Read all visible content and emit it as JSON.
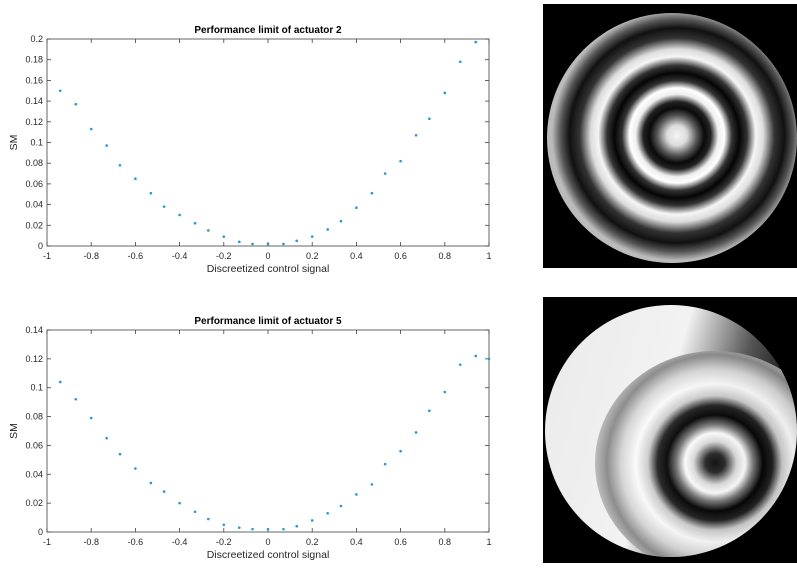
{
  "chart_data": [
    {
      "type": "scatter",
      "title": "Performance limit of actuator 2",
      "xlabel": "Discreetized control signal",
      "ylabel": "SM",
      "xlim": [
        -1,
        1
      ],
      "ylim": [
        0,
        0.2
      ],
      "xticks": [
        "-1",
        "-0.8",
        "-0.6",
        "-0.4",
        "-0.2",
        "0",
        "0.2",
        "0.4",
        "0.6",
        "0.8",
        "1"
      ],
      "yticks": [
        "0",
        "0.02",
        "0.04",
        "0.06",
        "0.08",
        "0.1",
        "0.12",
        "0.14",
        "0.16",
        "0.18",
        "0.2"
      ],
      "marker_color": "#1f9bd6",
      "series": [
        {
          "x": [
            -0.94,
            -0.87,
            -0.8,
            -0.73,
            -0.67,
            -0.6,
            -0.53,
            -0.47,
            -0.4,
            -0.33,
            -0.27,
            -0.2,
            -0.13,
            -0.07,
            0.0,
            0.07,
            0.13,
            0.2,
            0.27,
            0.33,
            0.4,
            0.47,
            0.53,
            0.6,
            0.67,
            0.73,
            0.8,
            0.87,
            0.94
          ],
          "y": [
            0.15,
            0.137,
            0.113,
            0.097,
            0.078,
            0.065,
            0.051,
            0.038,
            0.03,
            0.022,
            0.015,
            0.009,
            0.004,
            0.002,
            0.002,
            0.002,
            0.005,
            0.009,
            0.016,
            0.024,
            0.037,
            0.051,
            0.07,
            0.082,
            0.107,
            0.123,
            0.148,
            0.178,
            0.197
          ]
        }
      ]
    },
    {
      "type": "scatter",
      "title": "Performance limit of actuator 5",
      "xlabel": "Discreetized control signal",
      "ylabel": "SM",
      "xlim": [
        -1,
        1
      ],
      "ylim": [
        0,
        0.14
      ],
      "xticks": [
        "-1",
        "-0.8",
        "-0.6",
        "-0.4",
        "-0.2",
        "0",
        "0.2",
        "0.4",
        "0.6",
        "0.8",
        "1"
      ],
      "yticks": [
        "0",
        "0.02",
        "0.04",
        "0.06",
        "0.08",
        "0.1",
        "0.12",
        "0.14"
      ],
      "marker_color": "#1f9bd6",
      "series": [
        {
          "x": [
            -0.94,
            -0.87,
            -0.8,
            -0.73,
            -0.67,
            -0.6,
            -0.53,
            -0.47,
            -0.4,
            -0.33,
            -0.27,
            -0.2,
            -0.13,
            -0.07,
            0.0,
            0.07,
            0.13,
            0.2,
            0.27,
            0.33,
            0.4,
            0.47,
            0.53,
            0.6,
            0.67,
            0.73,
            0.8,
            0.87,
            0.94,
            1.0
          ],
          "y": [
            0.104,
            0.092,
            0.079,
            0.065,
            0.054,
            0.044,
            0.034,
            0.028,
            0.02,
            0.014,
            0.009,
            0.005,
            0.003,
            0.002,
            0.002,
            0.002,
            0.004,
            0.008,
            0.013,
            0.018,
            0.026,
            0.033,
            0.047,
            0.056,
            0.069,
            0.084,
            0.097,
            0.116,
            0.122,
            0.12
          ]
        }
      ]
    }
  ],
  "images": [
    {
      "name": "fringe-pattern-actuator-2"
    },
    {
      "name": "fringe-pattern-actuator-5"
    }
  ]
}
